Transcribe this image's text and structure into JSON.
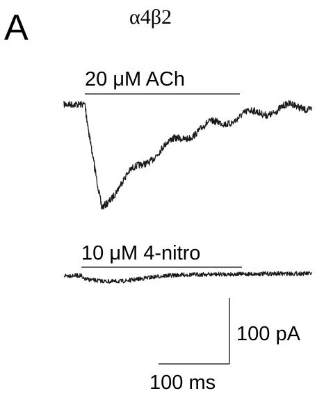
{
  "figure": {
    "panel_letter": "A",
    "subunit": "α4β2"
  },
  "traces": [
    {
      "name": "ach-response",
      "drug_label": "20 μM ACh"
    },
    {
      "name": "nitro-response",
      "drug_label": "10 μM 4-nitro"
    }
  ],
  "scale_bar": {
    "current_label": "100 pA",
    "time_label": "100 ms"
  },
  "colors": {
    "trace": "#1a1a1a",
    "bar": "#333333"
  }
}
